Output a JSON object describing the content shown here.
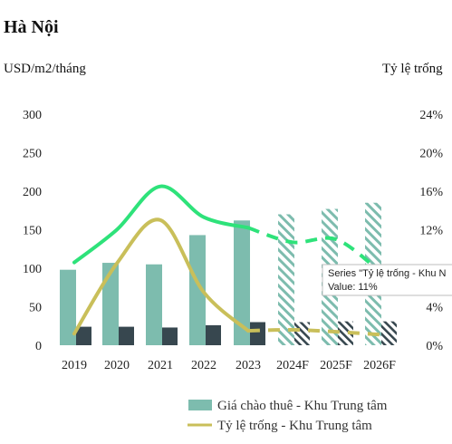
{
  "chart_data": {
    "type": "bar",
    "title": "Hà Nội",
    "left_axis_label": "USD/m2/tháng",
    "right_axis_label": "Tỷ lệ trống",
    "categories": [
      "2019",
      "2020",
      "2021",
      "2022",
      "2023",
      "2024F",
      "2025F",
      "2026F"
    ],
    "forecast_categories": [
      "2024F",
      "2025F",
      "2026F"
    ],
    "ylim_left": [
      0,
      300
    ],
    "yticks_left": [
      "0",
      "50",
      "100",
      "150",
      "200",
      "250",
      "300"
    ],
    "ylim_right": [
      0,
      24
    ],
    "yticks_right": [
      "0%",
      "4%",
      "8%",
      "12%",
      "16%",
      "20%",
      "24%"
    ],
    "grid": false,
    "legend_position": "bottom-center",
    "series": [
      {
        "name": "Giá chào thuê - Khu Trung tâm",
        "type": "bar",
        "axis": "left",
        "color": "#7dbcae",
        "values": [
          98,
          107,
          105,
          143,
          162,
          170,
          177,
          185
        ]
      },
      {
        "type": "bar",
        "axis": "left",
        "color": "#37474f",
        "values": [
          24,
          24,
          23,
          26,
          30,
          30,
          31,
          31
        ]
      },
      {
        "name": "Tỷ lệ trống - Khu Trung tâm",
        "type": "line",
        "axis": "right",
        "color": "#c9bf5a",
        "values": [
          1.2,
          8.5,
          13.0,
          5.5,
          1.5,
          1.6,
          1.4,
          1.1
        ]
      },
      {
        "type": "line",
        "axis": "right",
        "color": "#2ee27a",
        "values": [
          8.6,
          12.0,
          16.5,
          13.3,
          12.2,
          10.7,
          11.0,
          7.7
        ]
      }
    ],
    "tooltip": {
      "line1": "Series \"Tỷ lệ trống - Khu N",
      "line2": "Value: 11%"
    }
  }
}
